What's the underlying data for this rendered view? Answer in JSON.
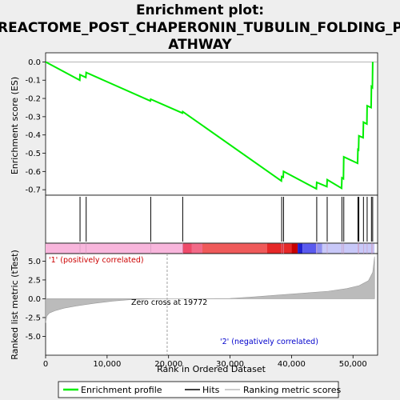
{
  "chart_data": {
    "type": "line",
    "title_lines": [
      "Enrichment plot:",
      "REACTOME_POST_CHAPERONIN_TUBULIN_FOLDING_P",
      "ATHWAY"
    ],
    "xlabel": "Rank in Ordered Dataset",
    "es_ylabel": "Enrichment score (ES)",
    "metric_ylabel": "Ranked list metric (tTest)",
    "xlim": [
      0,
      54000
    ],
    "x_ticks": [
      0,
      10000,
      20000,
      30000,
      40000,
      50000
    ],
    "x_tick_labels": [
      "0",
      "10,000",
      "20,000",
      "30,000",
      "40,000",
      "50,000"
    ],
    "es_ylim": [
      -0.73,
      0.05
    ],
    "es_ticks": [
      0.0,
      -0.1,
      -0.2,
      -0.3,
      -0.4,
      -0.5,
      -0.6,
      -0.7
    ],
    "es_tick_labels": [
      "0.0",
      "-0.1",
      "-0.2",
      "-0.3",
      "-0.4",
      "-0.5",
      "-0.6",
      "-0.7"
    ],
    "metric_ylim": [
      -7.5,
      6.0
    ],
    "metric_ticks": [
      5.0,
      2.5,
      0.0,
      -2.5,
      -5.0
    ],
    "metric_tick_labels": [
      "5.0",
      "2.5",
      "0.0",
      "-2.5",
      "-5.0"
    ],
    "hits": [
      5600,
      6600,
      17100,
      22300,
      38400,
      38700,
      44100,
      45800,
      48200,
      48500,
      50800,
      50950,
      51700,
      52300,
      53000,
      53200
    ],
    "es_curve": [
      [
        0,
        0.0
      ],
      [
        5550,
        -0.1
      ],
      [
        5600,
        -0.07
      ],
      [
        6550,
        -0.085
      ],
      [
        6600,
        -0.058
      ],
      [
        17050,
        -0.214
      ],
      [
        17100,
        -0.204
      ],
      [
        22250,
        -0.28
      ],
      [
        22300,
        -0.272
      ],
      [
        38350,
        -0.652
      ],
      [
        38400,
        -0.628
      ],
      [
        38650,
        -0.632
      ],
      [
        38700,
        -0.6
      ],
      [
        44050,
        -0.695
      ],
      [
        44100,
        -0.66
      ],
      [
        45750,
        -0.683
      ],
      [
        45800,
        -0.645
      ],
      [
        48150,
        -0.692
      ],
      [
        48200,
        -0.635
      ],
      [
        48450,
        -0.64
      ],
      [
        48500,
        -0.52
      ],
      [
        50750,
        -0.555
      ],
      [
        50800,
        -0.48
      ],
      [
        50900,
        -0.482
      ],
      [
        50950,
        -0.405
      ],
      [
        51650,
        -0.415
      ],
      [
        51700,
        -0.33
      ],
      [
        52250,
        -0.34
      ],
      [
        52300,
        -0.24
      ],
      [
        52950,
        -0.25
      ],
      [
        53000,
        -0.135
      ],
      [
        53150,
        -0.14
      ],
      [
        53200,
        0.0
      ]
    ],
    "metric_curve": [
      [
        0,
        -3.2
      ],
      [
        200,
        -2.3
      ],
      [
        600,
        -1.9
      ],
      [
        1500,
        -1.6
      ],
      [
        3000,
        -1.25
      ],
      [
        5000,
        -0.95
      ],
      [
        8000,
        -0.6
      ],
      [
        11000,
        -0.3
      ],
      [
        14000,
        -0.1
      ],
      [
        17000,
        -0.02
      ],
      [
        19772,
        0.0
      ],
      [
        25000,
        0.0
      ],
      [
        30000,
        0.05
      ],
      [
        34000,
        0.25
      ],
      [
        38000,
        0.5
      ],
      [
        42000,
        0.75
      ],
      [
        46000,
        1.0
      ],
      [
        49000,
        1.35
      ],
      [
        51000,
        1.75
      ],
      [
        52500,
        2.4
      ],
      [
        53200,
        3.5
      ],
      [
        53500,
        5.6
      ]
    ],
    "zero_cross": 19772,
    "annotations": {
      "positive": "'1' (positively correlated)",
      "negative": "'2' (negatively correlated)",
      "zero_cross": "Zero cross at 19772"
    },
    "legend": {
      "items": [
        "Enrichment profile",
        "Hits",
        "Ranking metric scores"
      ],
      "placement": "bottom"
    },
    "colors": {
      "es_line": "#00ee00",
      "hits": "#000000",
      "metric_fill": "#bbbbbb",
      "positive_text": "#cc0000",
      "negative_text": "#0000cc",
      "zero_line": "#a0a0a0"
    },
    "gradient_bands": [
      {
        "from": 0,
        "to": 22300,
        "color": "#f8b6dc"
      },
      {
        "from": 22300,
        "to": 23800,
        "color": "#ee4a6a"
      },
      {
        "from": 23800,
        "to": 25500,
        "color": "#f26a88"
      },
      {
        "from": 25500,
        "to": 36000,
        "color": "#ef5a5a"
      },
      {
        "from": 36000,
        "to": 40000,
        "color": "#e62828"
      },
      {
        "from": 40000,
        "to": 41000,
        "color": "#c80000"
      },
      {
        "from": 41000,
        "to": 41800,
        "color": "#2020d0"
      },
      {
        "from": 41800,
        "to": 44000,
        "color": "#5a5aee"
      },
      {
        "from": 44000,
        "to": 45000,
        "color": "#9090f0"
      },
      {
        "from": 45000,
        "to": 53500,
        "color": "#c8c8f8"
      }
    ]
  }
}
